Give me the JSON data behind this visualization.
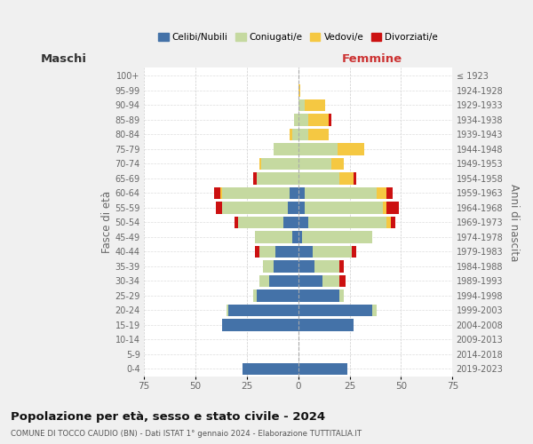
{
  "age_groups_bottom_to_top": [
    "0-4",
    "5-9",
    "10-14",
    "15-19",
    "20-24",
    "25-29",
    "30-34",
    "35-39",
    "40-44",
    "45-49",
    "50-54",
    "55-59",
    "60-64",
    "65-69",
    "70-74",
    "75-79",
    "80-84",
    "85-89",
    "90-94",
    "95-99",
    "100+"
  ],
  "birth_years_bottom_to_top": [
    "2019-2023",
    "2014-2018",
    "2009-2013",
    "2004-2008",
    "1999-2003",
    "1994-1998",
    "1989-1993",
    "1984-1988",
    "1979-1983",
    "1974-1978",
    "1969-1973",
    "1964-1968",
    "1959-1963",
    "1954-1958",
    "1949-1953",
    "1944-1948",
    "1939-1943",
    "1934-1938",
    "1929-1933",
    "1924-1928",
    "≤ 1923"
  ],
  "colors": {
    "celibi": "#4472a8",
    "coniugati": "#c5d9a0",
    "vedovi": "#f5c842",
    "divorziati": "#cc1111"
  },
  "males": {
    "celibi": [
      27,
      0,
      0,
      37,
      34,
      20,
      14,
      12,
      11,
      3,
      7,
      5,
      4,
      0,
      0,
      0,
      0,
      0,
      0,
      0,
      0
    ],
    "coniugati": [
      0,
      0,
      0,
      0,
      1,
      2,
      5,
      5,
      8,
      18,
      22,
      32,
      33,
      20,
      18,
      12,
      3,
      2,
      0,
      0,
      0
    ],
    "vedovi": [
      0,
      0,
      0,
      0,
      0,
      0,
      0,
      0,
      0,
      0,
      0,
      0,
      1,
      0,
      1,
      0,
      1,
      0,
      0,
      0,
      0
    ],
    "divorziati": [
      0,
      0,
      0,
      0,
      0,
      0,
      0,
      0,
      2,
      0,
      2,
      3,
      3,
      2,
      0,
      0,
      0,
      0,
      0,
      0,
      0
    ]
  },
  "females": {
    "nubili": [
      24,
      0,
      0,
      27,
      36,
      20,
      12,
      8,
      7,
      2,
      5,
      3,
      3,
      0,
      0,
      0,
      0,
      0,
      0,
      0,
      0
    ],
    "coniugate": [
      0,
      0,
      0,
      0,
      2,
      2,
      8,
      12,
      19,
      34,
      38,
      38,
      35,
      20,
      16,
      19,
      5,
      5,
      3,
      0,
      0
    ],
    "vedove": [
      0,
      0,
      0,
      0,
      0,
      0,
      0,
      0,
      0,
      0,
      2,
      2,
      5,
      7,
      6,
      13,
      10,
      10,
      10,
      1,
      0
    ],
    "divorziate": [
      0,
      0,
      0,
      0,
      0,
      0,
      3,
      2,
      2,
      0,
      2,
      6,
      3,
      1,
      0,
      0,
      0,
      1,
      0,
      0,
      0
    ]
  },
  "xlabel_left": "Maschi",
  "xlabel_right": "Femmine",
  "ylabel_left": "Fasce di età",
  "ylabel_right": "Anni di nascita",
  "title": "Popolazione per età, sesso e stato civile - 2024",
  "subtitle": "COMUNE DI TOCCO CAUDIO (BN) - Dati ISTAT 1° gennaio 2024 - Elaborazione TUTTITALIA.IT",
  "legend_labels": [
    "Celibi/Nubili",
    "Coniugati/e",
    "Vedovi/e",
    "Divorziati/e"
  ],
  "xlim": 75,
  "bg_color": "#f0f0f0",
  "plot_bg": "#ffffff"
}
